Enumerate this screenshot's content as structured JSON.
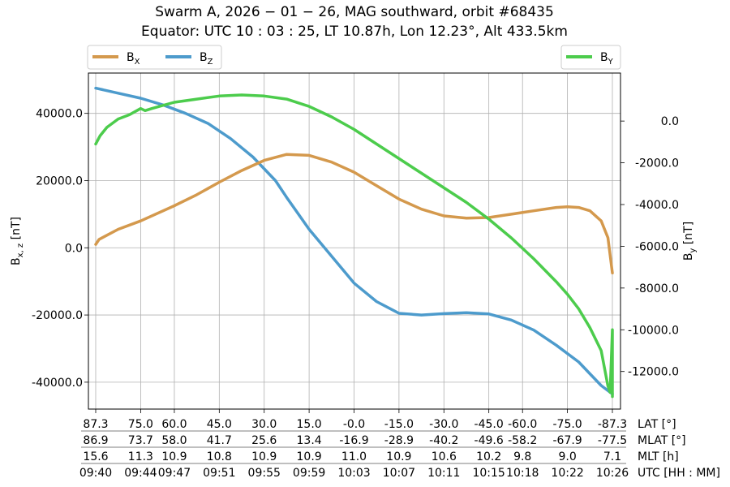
{
  "title_line1": "Swarm A,  2026 − 01 − 26,  MAG southward,  orbit #68435",
  "title_line2": "Equator:  UTC 10 : 03 : 25,  LT 10.87h,  Lon 12.23°,  Alt 433.5km",
  "chart_data": {
    "type": "line",
    "x_ticks_utc_min": [
      580,
      584,
      587,
      591,
      595,
      599,
      603,
      607,
      611,
      615,
      618,
      622,
      626
    ],
    "x_range_utc_min": [
      580,
      626
    ],
    "left_axis": {
      "label_main": "B",
      "label_sub": "x, z",
      "label_unit": " [nT]",
      "range": [
        -48000,
        52000
      ],
      "ticks": [
        -40000,
        -20000,
        0,
        20000,
        40000
      ],
      "tick_labels": [
        "-40000.0",
        "-20000.0",
        "0.0",
        "20000.0",
        "40000.0"
      ]
    },
    "right_axis": {
      "label_main": "B",
      "label_sub": "y",
      "label_unit": " [nT]",
      "range": [
        -13800,
        2300
      ],
      "ticks": [
        -12000,
        -10000,
        -8000,
        -6000,
        -4000,
        -2000,
        0
      ],
      "tick_labels": [
        "-12000.0",
        "-10000.0",
        "-8000.0",
        "-6000.0",
        "-4000.0",
        "-2000.0",
        "0.0"
      ]
    },
    "grid": true,
    "series": [
      {
        "name": "BX",
        "legend_main": "B",
        "legend_sub": "X",
        "axis": "left",
        "color": "#d4994d",
        "points": [
          [
            580,
            1000
          ],
          [
            580.3,
            2500
          ],
          [
            582,
            5500
          ],
          [
            584,
            8000
          ],
          [
            587,
            12500
          ],
          [
            589,
            15800
          ],
          [
            591,
            19500
          ],
          [
            593,
            23000
          ],
          [
            595,
            26000
          ],
          [
            597,
            27800
          ],
          [
            599,
            27500
          ],
          [
            601,
            25500
          ],
          [
            603,
            22500
          ],
          [
            605,
            18500
          ],
          [
            607,
            14500
          ],
          [
            609,
            11500
          ],
          [
            611,
            9500
          ],
          [
            613,
            8800
          ],
          [
            615,
            9000
          ],
          [
            617,
            10000
          ],
          [
            619,
            11000
          ],
          [
            621,
            12000
          ],
          [
            622,
            12200
          ],
          [
            623,
            12000
          ],
          [
            624,
            11000
          ],
          [
            625,
            8000
          ],
          [
            625.6,
            3000
          ],
          [
            626,
            -7500
          ]
        ]
      },
      {
        "name": "BZ",
        "legend_main": "B",
        "legend_sub": "Z",
        "axis": "left",
        "color": "#4d9bcc",
        "points": [
          [
            580,
            47500
          ],
          [
            582,
            46000
          ],
          [
            584,
            44500
          ],
          [
            586,
            42500
          ],
          [
            588,
            40000
          ],
          [
            590,
            37000
          ],
          [
            592,
            32500
          ],
          [
            594,
            27000
          ],
          [
            596,
            20000
          ],
          [
            597,
            15000
          ],
          [
            599,
            5500
          ],
          [
            601,
            -2500
          ],
          [
            603,
            -10500
          ],
          [
            605,
            -16000
          ],
          [
            607,
            -19500
          ],
          [
            609,
            -20000
          ],
          [
            611,
            -19600
          ],
          [
            613,
            -19300
          ],
          [
            615,
            -19700
          ],
          [
            617,
            -21500
          ],
          [
            619,
            -24500
          ],
          [
            621,
            -29000
          ],
          [
            623,
            -34000
          ],
          [
            624,
            -37500
          ],
          [
            625,
            -41000
          ],
          [
            626,
            -43500
          ]
        ]
      },
      {
        "name": "BY",
        "legend_main": "B",
        "legend_sub": "Y",
        "axis": "right",
        "color": "#4ccc4c",
        "points": [
          [
            580,
            -1100
          ],
          [
            580.4,
            -700
          ],
          [
            581,
            -300
          ],
          [
            582,
            100
          ],
          [
            583,
            300
          ],
          [
            584,
            600
          ],
          [
            584.4,
            500
          ],
          [
            585,
            600
          ],
          [
            587,
            900
          ],
          [
            589,
            1050
          ],
          [
            591,
            1200
          ],
          [
            593,
            1250
          ],
          [
            595,
            1200
          ],
          [
            597,
            1050
          ],
          [
            599,
            700
          ],
          [
            601,
            200
          ],
          [
            603,
            -400
          ],
          [
            605,
            -1100
          ],
          [
            607,
            -1800
          ],
          [
            609,
            -2500
          ],
          [
            611,
            -3200
          ],
          [
            613,
            -3900
          ],
          [
            615,
            -4700
          ],
          [
            617,
            -5600
          ],
          [
            619,
            -6600
          ],
          [
            621,
            -7700
          ],
          [
            622,
            -8300
          ],
          [
            623,
            -9000
          ],
          [
            624,
            -9900
          ],
          [
            625,
            -11000
          ],
          [
            625.6,
            -12700
          ],
          [
            625.8,
            -13000
          ],
          [
            626,
            -10000
          ],
          [
            626,
            -13200
          ]
        ]
      }
    ],
    "bottom_rows": [
      {
        "label": "LAT [°]",
        "values": [
          "87.3",
          "75.0",
          "60.0",
          "45.0",
          "30.0",
          "15.0",
          "-0.0",
          "-15.0",
          "-30.0",
          "-45.0",
          "-60.0",
          "-75.0",
          "-87.3"
        ]
      },
      {
        "label": "MLAT [°]",
        "values": [
          "86.9",
          "73.7",
          "58.0",
          "41.7",
          "25.6",
          "13.4",
          "-16.9",
          "-28.9",
          "-40.2",
          "-49.6",
          "-58.2",
          "-67.9",
          "-77.5"
        ]
      },
      {
        "label": "MLT [h]",
        "values": [
          "15.6",
          "11.3",
          "10.9",
          "10.8",
          "10.9",
          "10.9",
          "11.0",
          "10.9",
          "10.6",
          "10.2",
          "9.8",
          "9.0",
          "7.1"
        ]
      },
      {
        "label": "UTC [HH : MM]",
        "values": [
          "09:40",
          "09:44",
          "09:47",
          "09:51",
          "09:55",
          "09:59",
          "10:03",
          "10:07",
          "10:11",
          "10:15",
          "10:18",
          "10:22",
          "10:26"
        ]
      }
    ]
  }
}
